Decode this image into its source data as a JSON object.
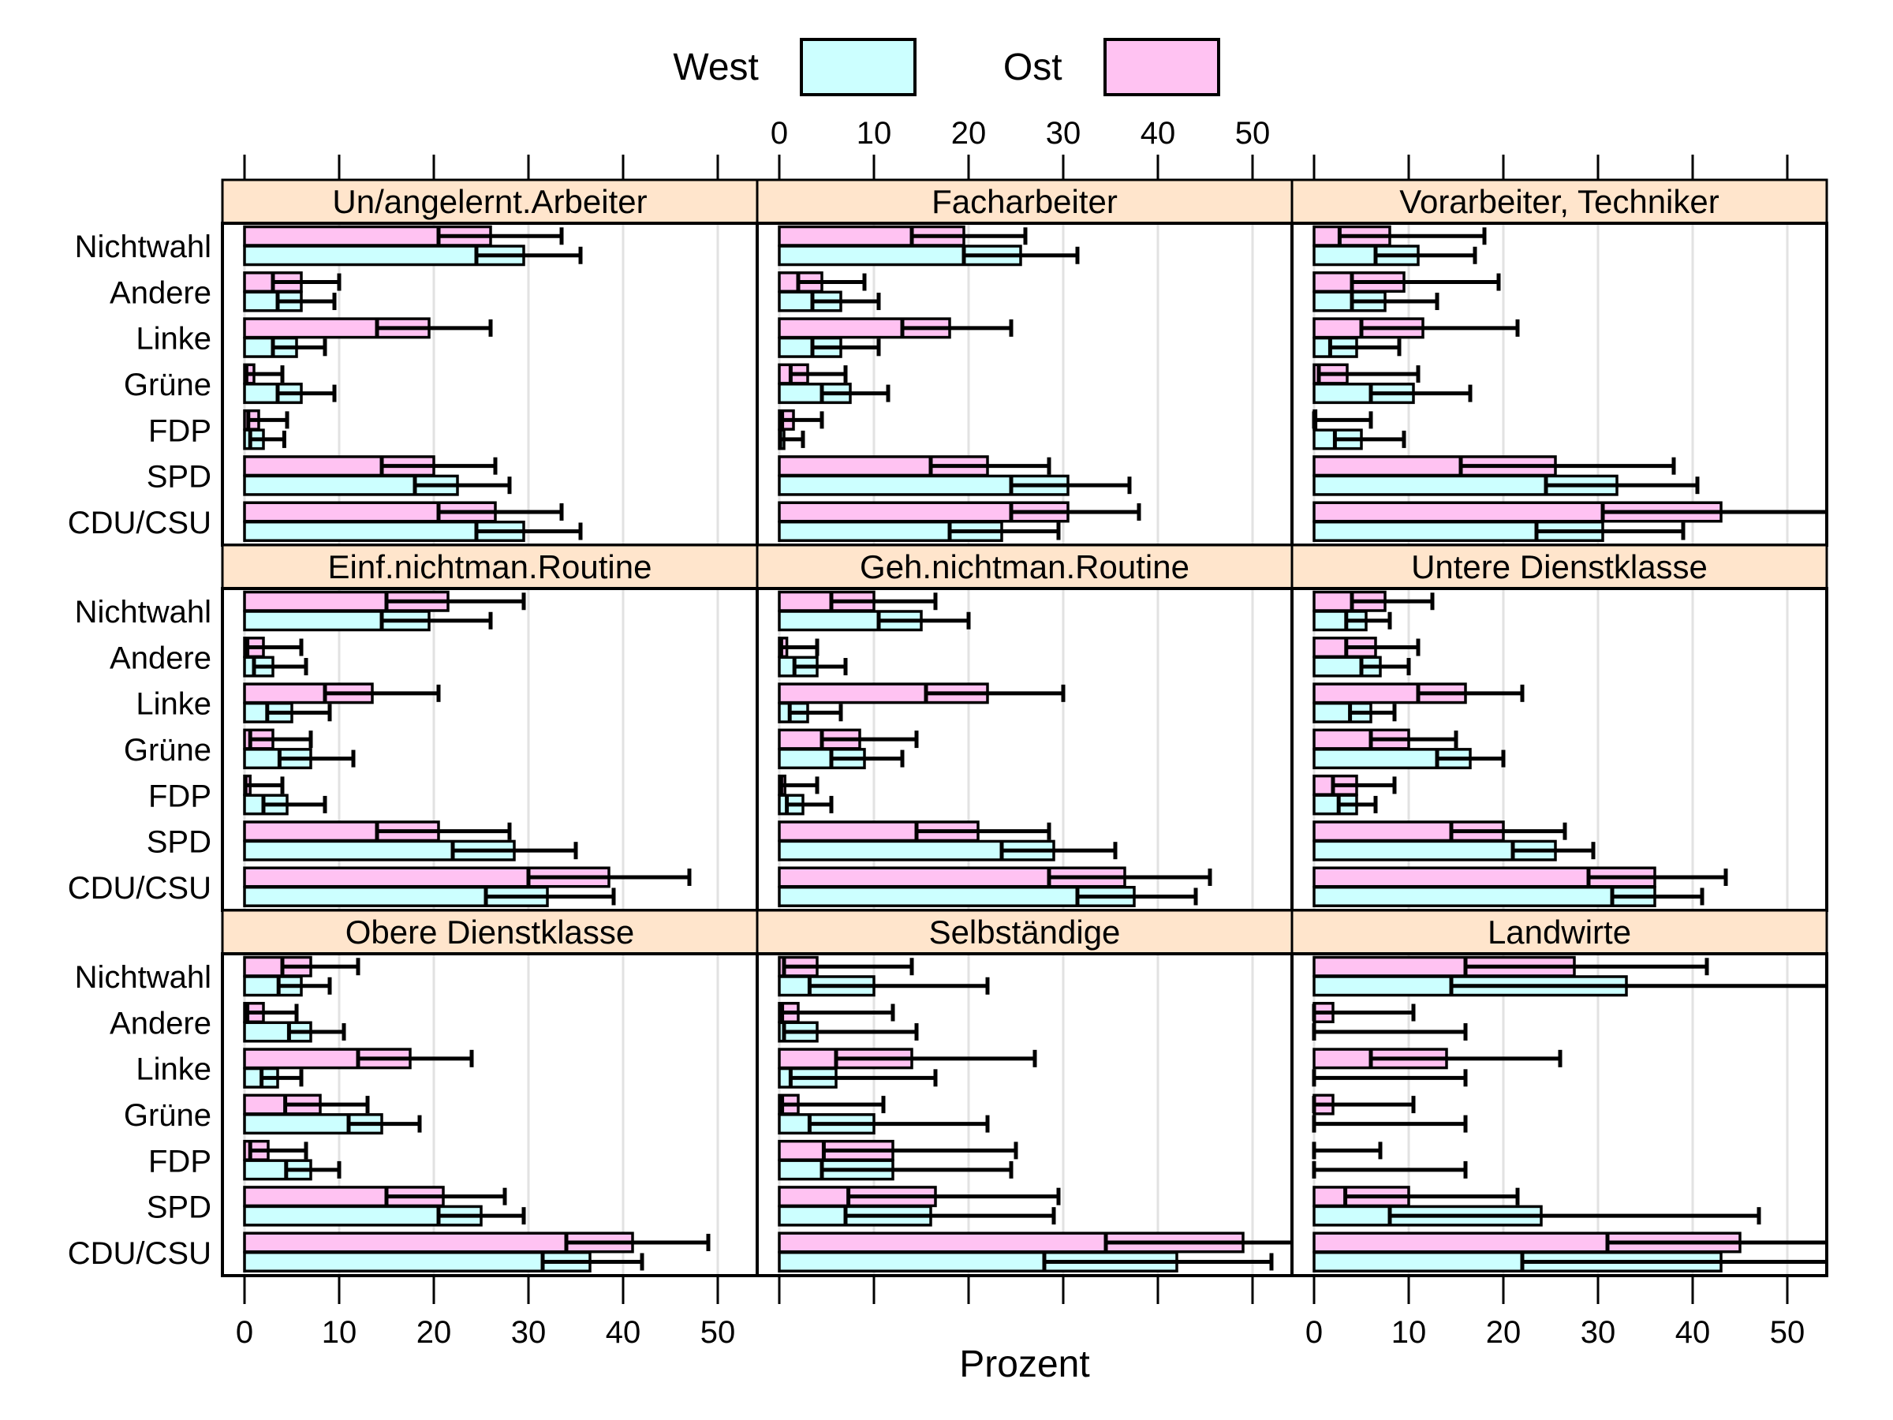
{
  "legend": {
    "west_label": "West",
    "ost_label": "Ost"
  },
  "axis": {
    "xlabel": "Prozent",
    "ticks": [
      0,
      10,
      20,
      30,
      40,
      50
    ]
  },
  "colors": {
    "west": "#CCFFFF",
    "ost": "#FFC2F2",
    "strip": "#FFE5CC",
    "grid": "#E2E2E2",
    "border": "#000000"
  },
  "categories": [
    "Nichtwahl",
    "Andere",
    "Linke",
    "Grüne",
    "FDP",
    "SPD",
    "CDU/CSU"
  ],
  "chart_data": {
    "type": "bar",
    "orientation": "horizontal",
    "xlabel": "Prozent",
    "xlim": [
      -2.3,
      54.2
    ],
    "tick_values": [
      0,
      10,
      20,
      30,
      40,
      50
    ],
    "legend_position": "top",
    "grid": "vertical",
    "series_names": [
      "West",
      "Ost"
    ],
    "categories_top_to_bottom": [
      "Nichtwahl",
      "Andere",
      "Linke",
      "Grüne",
      "FDP",
      "SPD",
      "CDU/CSU"
    ],
    "panels": [
      {
        "title": "Un/angelernt.Arbeiter",
        "ost": {
          "values": [
            26,
            6,
            19.5,
            1,
            1.5,
            20,
            26.5
          ],
          "lo": [
            20.5,
            3,
            14,
            0.2,
            0.4,
            14.5,
            20.5
          ],
          "hi": [
            33.5,
            10,
            26,
            4,
            4.5,
            26.5,
            33.5
          ]
        },
        "west": {
          "values": [
            29.5,
            6,
            5.5,
            6,
            2,
            22.5,
            29.5
          ],
          "lo": [
            24.5,
            3.5,
            3,
            3.5,
            0.6,
            18,
            24.5
          ],
          "hi": [
            35.5,
            9.5,
            8.5,
            9.5,
            4.2,
            28,
            35.5
          ]
        }
      },
      {
        "title": "Facharbeiter",
        "ost": {
          "values": [
            19.5,
            4.5,
            18,
            3,
            1.5,
            22,
            30.5
          ],
          "lo": [
            14,
            2,
            13,
            1.2,
            0.3,
            16,
            24.5
          ],
          "hi": [
            26,
            9,
            24.5,
            7,
            4.5,
            28.5,
            38
          ]
        },
        "west": {
          "values": [
            25.5,
            6.5,
            6.5,
            7.5,
            0.5,
            30.5,
            23.5
          ],
          "lo": [
            19.5,
            3.5,
            3.5,
            4.5,
            0.1,
            24.5,
            18
          ],
          "hi": [
            31.5,
            10.5,
            10.5,
            11.5,
            2.5,
            37,
            29.5
          ]
        }
      },
      {
        "title": "Vorarbeiter, Techniker",
        "ost": {
          "values": [
            8,
            9.5,
            11.5,
            3.5,
            0.2,
            25.5,
            43
          ],
          "lo": [
            2.7,
            4,
            5,
            0.5,
            0,
            15.5,
            30.5
          ],
          "hi": [
            18,
            19.5,
            21.5,
            11,
            6,
            38,
            54.2
          ]
        },
        "west": {
          "values": [
            11,
            7.5,
            4.5,
            10.5,
            5,
            32,
            30.5
          ],
          "lo": [
            6.5,
            4,
            1.7,
            6,
            2.2,
            24.5,
            23.5
          ],
          "hi": [
            17,
            13,
            9,
            16.5,
            9.5,
            40.5,
            39
          ]
        }
      },
      {
        "title": "Einf.nichtman.Routine",
        "ost": {
          "values": [
            21.5,
            2,
            13.5,
            3,
            0.6,
            20.5,
            38.5
          ],
          "lo": [
            15,
            0.3,
            8.5,
            0.6,
            0.1,
            14,
            30
          ],
          "hi": [
            29.5,
            6,
            20.5,
            7,
            4,
            28,
            47
          ]
        },
        "west": {
          "values": [
            19.5,
            3,
            5,
            7,
            4.5,
            28.5,
            32
          ],
          "lo": [
            14.5,
            1,
            2.4,
            3.7,
            2,
            22,
            25.5
          ],
          "hi": [
            26,
            6.5,
            9,
            11.5,
            8.5,
            35,
            39
          ]
        }
      },
      {
        "title": "Geh.nichtman.Routine",
        "ost": {
          "values": [
            10,
            0.8,
            22,
            8.5,
            0.6,
            21,
            36.5
          ],
          "lo": [
            5.5,
            0.2,
            15.5,
            4.5,
            0.2,
            14.5,
            28.5
          ],
          "hi": [
            16.5,
            4,
            30,
            14.5,
            4,
            28.5,
            45.5
          ]
        },
        "west": {
          "values": [
            15,
            4,
            3,
            9,
            2.5,
            29,
            37.5
          ],
          "lo": [
            10.5,
            1.6,
            1.1,
            5.5,
            0.8,
            23.5,
            31.5
          ],
          "hi": [
            20,
            7,
            6.5,
            13,
            5.5,
            35.5,
            44
          ]
        }
      },
      {
        "title": "Untere Dienstklasse",
        "ost": {
          "values": [
            7.5,
            6.5,
            16,
            10,
            4.5,
            20,
            36
          ],
          "lo": [
            4,
            3.4,
            11,
            6,
            2,
            14.5,
            29
          ],
          "hi": [
            12.5,
            11,
            22,
            15,
            8.5,
            26.5,
            43.5
          ]
        },
        "west": {
          "values": [
            5.5,
            7,
            6,
            16.5,
            4.5,
            25.5,
            36
          ],
          "lo": [
            3.4,
            5,
            3.8,
            13,
            2.6,
            21,
            31.5
          ],
          "hi": [
            8,
            10,
            8.5,
            20,
            6.5,
            29.5,
            41
          ]
        }
      },
      {
        "title": "Obere Dienstklasse",
        "ost": {
          "values": [
            7,
            2,
            17.5,
            8,
            2.5,
            21,
            41
          ],
          "lo": [
            4,
            0.3,
            12,
            4.3,
            0.6,
            15,
            34
          ],
          "hi": [
            12,
            5.5,
            24,
            13,
            6.5,
            27.5,
            49
          ]
        },
        "west": {
          "values": [
            6,
            7,
            3.5,
            14.5,
            7,
            25,
            36.5
          ],
          "lo": [
            3.6,
            4.7,
            1.8,
            11,
            4.4,
            20.5,
            31.5
          ],
          "hi": [
            9,
            10.5,
            6,
            18.5,
            10,
            29.5,
            42
          ]
        }
      },
      {
        "title": "Selbständige",
        "ost": {
          "values": [
            4,
            2,
            14,
            2,
            12,
            16.5,
            49
          ],
          "lo": [
            0.5,
            0.3,
            6,
            0.3,
            4.7,
            7.3,
            34.5
          ],
          "hi": [
            14,
            12,
            27,
            11,
            25,
            29.5,
            54.2
          ]
        },
        "west": {
          "values": [
            10,
            4,
            6,
            10,
            12,
            16,
            42
          ],
          "lo": [
            3.2,
            0.5,
            1.2,
            3.2,
            4.5,
            7,
            28
          ],
          "hi": [
            22,
            14.5,
            16.5,
            22,
            24.5,
            29,
            52
          ]
        }
      },
      {
        "title": "Landwirte",
        "ost": {
          "values": [
            27.5,
            2,
            14,
            2,
            0,
            10,
            45
          ],
          "lo": [
            16,
            0,
            6,
            0,
            0,
            3.3,
            31
          ],
          "hi": [
            41.5,
            10.5,
            26,
            10.5,
            7,
            21.5,
            54.2
          ]
        },
        "west": {
          "values": [
            33,
            0,
            0,
            0,
            0,
            24,
            43
          ],
          "lo": [
            14.5,
            0,
            0,
            0,
            0,
            8,
            22
          ],
          "hi": [
            54.2,
            16,
            16,
            16,
            16,
            47,
            54.2
          ]
        }
      }
    ]
  }
}
